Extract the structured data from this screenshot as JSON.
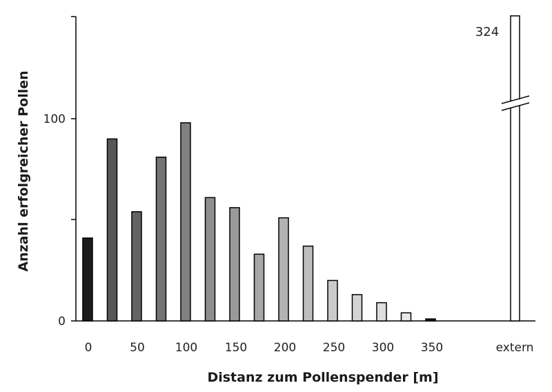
{
  "chart_data": {
    "type": "bar",
    "xlabel": "Distanz zum Pollenspender [m]",
    "ylabel": "Anzahl erfolgreicher Pollen",
    "x_tick_labels": [
      "0",
      "50",
      "100",
      "150",
      "200",
      "250",
      "300",
      "350",
      "extern"
    ],
    "y_tick_labels": [
      "0",
      "100"
    ],
    "ylim": [
      0,
      150
    ],
    "axis_break": true,
    "series": [
      {
        "values": [
          41,
          90,
          54,
          81,
          98,
          61,
          56,
          33,
          51,
          37,
          20,
          13,
          9,
          4,
          1
        ],
        "colors": [
          "#1c1c1c",
          "#585858",
          "#646464",
          "#737373",
          "#818181",
          "#8e8e8e",
          "#9a9a9a",
          "#a7a7a7",
          "#b2b2b2",
          "#bebebe",
          "#cacaca",
          "#d4d4d4",
          "#dedede",
          "#e8e8e8",
          "#1c1c1c"
        ]
      }
    ],
    "extern": {
      "value": 324,
      "label": "324",
      "color": "#ffffff"
    }
  }
}
